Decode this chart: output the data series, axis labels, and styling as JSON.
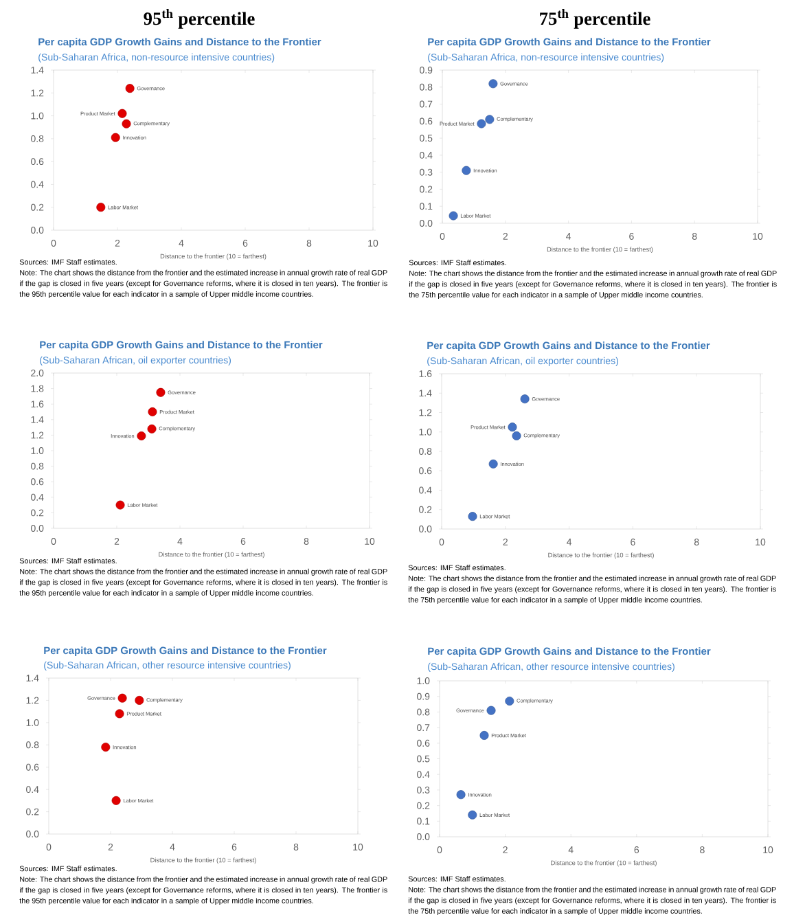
{
  "chart_data": [
    {
      "type": "scatter",
      "title": "Per capita GDP Growth Gains and Distance to the Frontier",
      "subtitle": "(Sub-Saharan Africa, non-resource intensive countries)",
      "xlabel": "Distance to the frontier (10 = farthest)",
      "marker": "circle",
      "x": [
        2.39,
        2.15,
        2.28,
        1.94,
        1.48
      ],
      "series": [
        {
          "color": "#e00000",
          "values": [
            1.24,
            1.02,
            0.93,
            0.81,
            0.2
          ]
        }
      ],
      "xlim": [
        0,
        10
      ],
      "xticks": [
        0,
        2,
        4,
        6,
        8,
        10
      ],
      "ylim": [
        0,
        1.4
      ],
      "yticks": [
        {
          "value": 0,
          "label": "0.0"
        },
        0.2,
        0.4,
        0.6,
        0.8,
        {
          "value": 1,
          "label": "1.0"
        },
        1.2,
        1.4
      ],
      "annotations": [
        "95$^{th}$ percentile",
        "Sources: IMF Staff estimates.",
        "Note: The chart shows the distance from the frontier and the estimated increase in annual growth rate of real GDP if the gap is closed in five years (except for Governance reforms, where it is closed in ten years). The frontier is the 95th percentile value for each indicator in a sample of Upper middle income countries.",
        {
          "text": "Governance",
          "x": 2.39,
          "y": 1.24
        },
        {
          "text": "Product Market",
          "x": 2.15,
          "y": 1.02
        },
        {
          "text": "Complementary",
          "x": 2.28,
          "y": 0.93
        },
        {
          "text": "Innovation",
          "x": 1.94,
          "y": 0.81
        },
        {
          "text": "Labor Market",
          "x": 1.48,
          "y": 0.2
        }
      ]
    },
    {
      "type": "scatter",
      "title": "Per capita GDP Growth Gains and Distance to the Frontier",
      "subtitle": "(Sub-Saharan Africa, non-resource intensive countries)",
      "xlabel": "Distance to the frontier (10 = farthest)",
      "marker": "circle",
      "x": [
        1.61,
        1.5,
        1.24,
        0.76,
        0.35
      ],
      "series": [
        {
          "color": "#4472c4",
          "values": [
            0.82,
            0.61,
            0.585,
            0.31,
            0.044
          ]
        }
      ],
      "xlim": [
        0,
        10
      ],
      "xticks": [
        0,
        2,
        4,
        6,
        8,
        10
      ],
      "ylim": [
        0,
        0.9
      ],
      "yticks": [
        {
          "value": 0,
          "label": "0.0"
        },
        0.1,
        0.2,
        0.3,
        0.4,
        0.5,
        0.6,
        0.7,
        0.8,
        0.9
      ],
      "annotations": [
        "75$^{th}$ percentile",
        "Sources: IMF Staff estimates.",
        "Note: The chart shows the distance from the frontier and the estimated increase in annual growth rate of real GDP if the gap is closed in five years (except for Governance reforms, where it is closed in ten years). The frontier is the 75th percentile value for each indicator in a sample of Upper middle income countries.",
        {
          "text": "Governance",
          "x": 1.61,
          "y": 0.82
        },
        {
          "text": "Complementary",
          "x": 1.5,
          "y": 0.61
        },
        {
          "text": "Product Market",
          "x": 1.24,
          "y": 0.585
        },
        {
          "text": "Innovation",
          "x": 0.76,
          "y": 0.31
        },
        {
          "text": "Labor Market",
          "x": 0.35,
          "y": 0.044
        }
      ]
    },
    {
      "type": "scatter",
      "title": "Per capita GDP Growth Gains and Distance to the Frontier",
      "subtitle": "(Sub-Saharan African, oil exporter countries)",
      "xlabel": "Distance to the frontier (10 = farthest)",
      "marker": "circle",
      "x": [
        3.39,
        3.13,
        3.11,
        2.78,
        2.11
      ],
      "series": [
        {
          "color": "#e00000",
          "values": [
            1.75,
            1.5,
            1.28,
            1.19,
            0.3
          ]
        }
      ],
      "xlim": [
        0,
        10
      ],
      "xticks": [
        0,
        2,
        4,
        6,
        8,
        10
      ],
      "ylim": [
        0,
        2
      ],
      "yticks": [
        {
          "value": 0,
          "label": "0.0"
        },
        0.2,
        0.4,
        0.6,
        0.8,
        {
          "value": 1,
          "label": "1.0"
        },
        1.2,
        1.4,
        1.6,
        1.8,
        {
          "value": 2,
          "label": "2.0"
        }
      ],
      "annotations": [
        "Sources: IMF Staff estimates.",
        "Note: The chart shows the distance from the frontier and the estimated increase in annual growth rate of real GDP if the gap is closed in five years (except for Governance reforms, where it is closed in ten years). The frontier is the 95th percentile value for each indicator in a sample of Upper middle income countries.",
        {
          "text": "Governance",
          "x": 3.39,
          "y": 1.75
        },
        {
          "text": "Product Market",
          "x": 3.13,
          "y": 1.5
        },
        {
          "text": "Complementary",
          "x": 3.11,
          "y": 1.28
        },
        {
          "text": "Innovation",
          "x": 2.78,
          "y": 1.19
        },
        {
          "text": "Labor Market",
          "x": 2.11,
          "y": 0.3
        }
      ]
    },
    {
      "type": "scatter",
      "title": "Per capita GDP Growth Gains and Distance to the Frontier",
      "subtitle": "(Sub-Saharan African, oil exporter countries)",
      "xlabel": "Distance to the frontier (10 = farthest)",
      "marker": "circle",
      "x": [
        2.61,
        2.22,
        2.35,
        1.62,
        0.97
      ],
      "series": [
        {
          "color": "#4472c4",
          "values": [
            1.34,
            1.05,
            0.96,
            0.67,
            0.13
          ]
        }
      ],
      "xlim": [
        0,
        10
      ],
      "xticks": [
        0,
        2,
        4,
        6,
        8,
        10
      ],
      "ylim": [
        0,
        1.6
      ],
      "yticks": [
        {
          "value": 0,
          "label": "0.0"
        },
        0.2,
        0.4,
        0.6,
        0.8,
        {
          "value": 1,
          "label": "1.0"
        },
        1.2,
        1.4,
        1.6
      ],
      "annotations": [
        "Sources: IMF Staff estimates.",
        "Note: The chart shows the distance from the frontier and the estimated increase in annual growth rate of real GDP if the gap is closed in five years (except for Governance reforms, where it is closed in ten years). The frontier is the 75th percentile value for each indicator in a sample of Upper middle income countries.",
        {
          "text": "Governance",
          "x": 2.61,
          "y": 1.34
        },
        {
          "text": "Product Market",
          "x": 2.22,
          "y": 1.05
        },
        {
          "text": "Complementary",
          "x": 2.35,
          "y": 0.96
        },
        {
          "text": "Innovation",
          "x": 1.62,
          "y": 0.67
        },
        {
          "text": "Labor Market",
          "x": 0.97,
          "y": 0.13
        }
      ]
    },
    {
      "type": "scatter",
      "title": "Per capita GDP Growth Gains and Distance to the Frontier",
      "subtitle": "(Sub-Saharan African, other resource intensive countries)",
      "xlabel": "Distance to the frontier (10 = farthest)",
      "marker": "circle",
      "x": [
        2.38,
        2.93,
        2.29,
        1.84,
        2.18
      ],
      "series": [
        {
          "color": "#e00000",
          "values": [
            1.22,
            1.2,
            1.08,
            0.78,
            0.3
          ]
        }
      ],
      "xlim": [
        0,
        10
      ],
      "xticks": [
        0,
        2,
        4,
        6,
        8,
        10
      ],
      "ylim": [
        0,
        1.4
      ],
      "yticks": [
        {
          "value": 0,
          "label": "0.0"
        },
        0.2,
        0.4,
        0.6,
        0.8,
        {
          "value": 1,
          "label": "1.0"
        },
        1.2,
        1.4
      ],
      "annotations": [
        "Sources: IMF Staff estimates.",
        "Note: The chart shows the distance from the frontier and the estimated increase in annual growth rate of real GDP if the gap is closed in five years (except for Governance reforms, where it is closed in ten years). The frontier is the 95th percentile value for each indicator in a sample of Upper middle income countries.",
        {
          "text": "Governance",
          "x": 2.38,
          "y": 1.22
        },
        {
          "text": "Complementary",
          "x": 2.93,
          "y": 1.2
        },
        {
          "text": "Product Market",
          "x": 2.29,
          "y": 1.08
        },
        {
          "text": "Innovation",
          "x": 1.84,
          "y": 0.78
        },
        {
          "text": "Labor Market",
          "x": 2.18,
          "y": 0.3
        }
      ]
    },
    {
      "type": "scatter",
      "title": "Per capita GDP Growth Gains and Distance to the Frontier",
      "subtitle": "(Sub-Saharan African, other resource intensive countries)",
      "xlabel": "Distance to the frontier (10 = farthest)",
      "marker": "circle",
      "x": [
        1.57,
        2.13,
        1.36,
        0.65,
        1.0
      ],
      "series": [
        {
          "color": "#4472c4",
          "values": [
            0.81,
            0.87,
            0.65,
            0.27,
            0.14
          ]
        }
      ],
      "xlim": [
        0,
        10
      ],
      "xticks": [
        0,
        2,
        4,
        6,
        8,
        10
      ],
      "ylim": [
        0,
        1
      ],
      "yticks": [
        {
          "value": 0,
          "label": "0.0"
        },
        0.1,
        0.2,
        0.3,
        0.4,
        0.5,
        0.6,
        0.7,
        0.8,
        0.9,
        {
          "value": 1,
          "label": "1.0"
        }
      ],
      "annotations": [
        "Sources: IMF Staff estimates.",
        "Note: The chart shows the distance from the frontier and the estimated increase in annual growth rate of real GDP if the gap is closed in five years (except for Governance reforms, where it is closed in ten years). The frontier is the 75th percentile value for each indicator in a sample of Upper middle income countries.",
        {
          "text": "Governance",
          "x": 1.57,
          "y": 0.81
        },
        {
          "text": "Complementary",
          "x": 2.13,
          "y": 0.87
        },
        {
          "text": "Product Market",
          "x": 1.36,
          "y": 0.65
        },
        {
          "text": "Innovation",
          "x": 0.65,
          "y": 0.27
        },
        {
          "text": "Labor Market",
          "x": 1.0,
          "y": 0.14
        }
      ]
    }
  ]
}
